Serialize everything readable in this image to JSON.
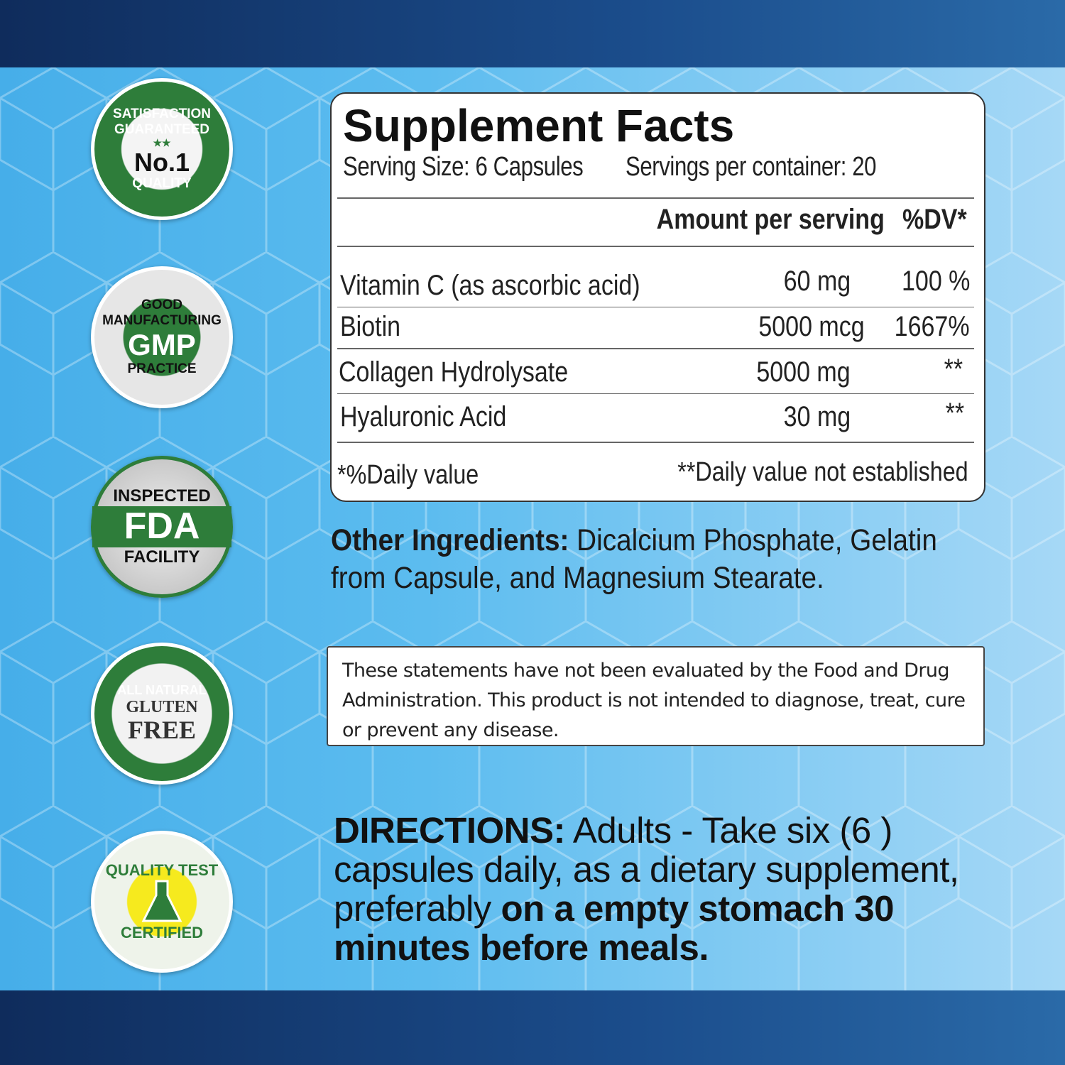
{
  "badges": [
    {
      "name": "satisfaction-badge",
      "top": "SATISFACTION GUARANTEED",
      "bottom": "QUALITY",
      "center": "No.1",
      "stars": "★★"
    },
    {
      "name": "gmp-badge",
      "top": "GOOD MANUFACTURING",
      "bottom": "PRACTICE",
      "center": "GMP"
    },
    {
      "name": "fda-badge",
      "top": "INSPECTED",
      "bottom": "FACILITY",
      "center": "FDA"
    },
    {
      "name": "gluten-free-badge",
      "top": "ALL NATURAL",
      "line1": "GLUTEN",
      "line2": "FREE"
    },
    {
      "name": "quality-test-badge",
      "top": "QUALITY TEST",
      "bottom": "CERTIFIED"
    }
  ],
  "facts": {
    "title": "Supplement Facts",
    "serving_size": "Serving Size: 6 Capsules",
    "servings_per_container": "Servings per container: 20",
    "col_amount": "Amount per serving",
    "col_dv": "%DV*",
    "rows": [
      {
        "name": "Vitamin C (as  ascorbic acid)",
        "amount": "60 mg",
        "dv": "100 %"
      },
      {
        "name": "Biotin",
        "amount": "5000 mcg",
        "dv": "1667%"
      },
      {
        "name": "Collagen  Hydrolysate",
        "amount": "5000 mg",
        "dv": "**"
      },
      {
        "name": "Hyaluronic Acid",
        "amount": "30 mg",
        "dv": "**"
      }
    ],
    "footnote_left": "*%Daily value",
    "footnote_right": "**Daily value not established"
  },
  "other": {
    "label": "Other Ingredients:",
    "text": " Dicalcium Phosphate, Gelatin from Capsule, and Magnesium  Stearate."
  },
  "disclaimer": "These statements have not been evaluated by the Food and Drug Administration. This product is not intended to diagnose, treat, cure or prevent any disease.",
  "directions": {
    "label": "DIRECTIONS:",
    "text": " Adults - Take six (6 ) capsules daily, as a dietary supplement, preferably ",
    "bold": "on a empty stomach 30 minutes before meals."
  },
  "colors": {
    "badge_green": "#2e7d3a",
    "band_blue": "#13386e",
    "bg_blue": "#5bb8ec"
  }
}
